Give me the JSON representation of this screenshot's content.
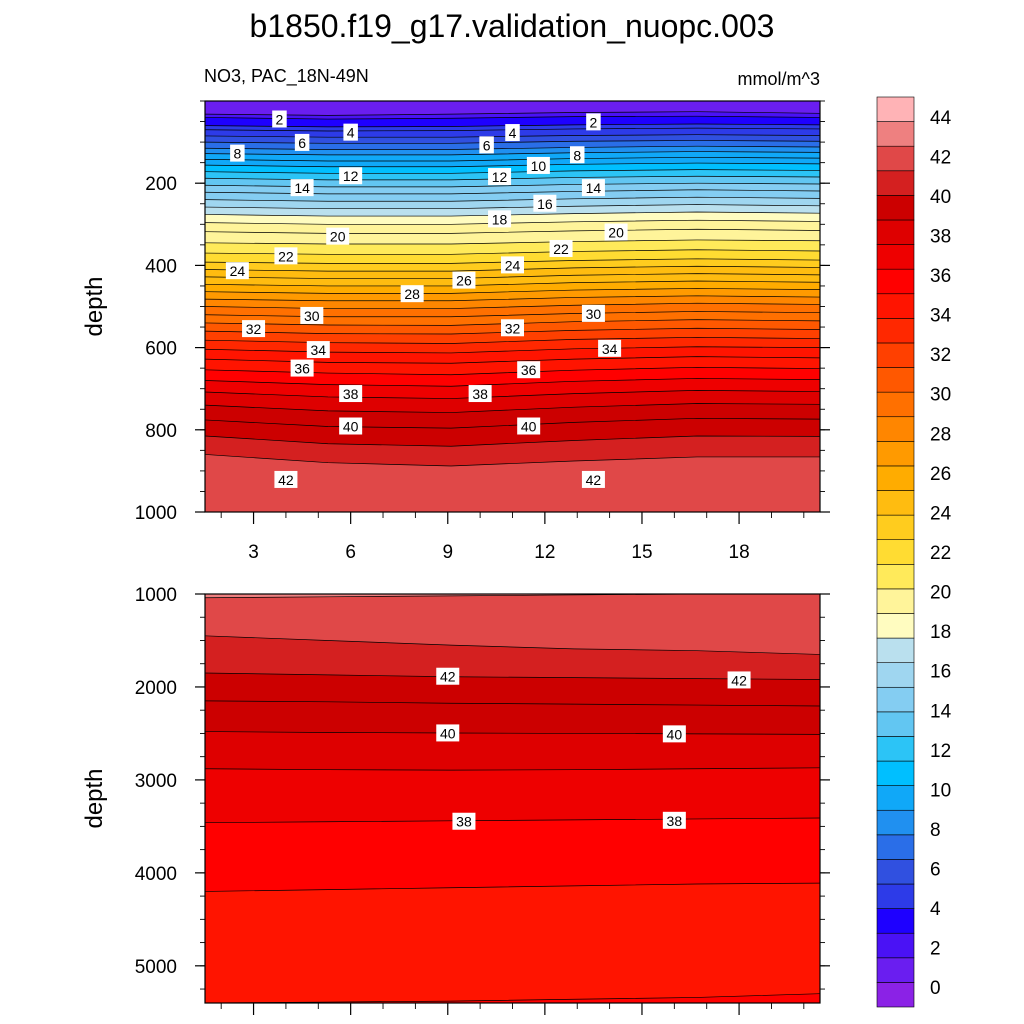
{
  "title": "b1850.f19_g17.validation_nuopc.003",
  "subtitle_left": "NO3, PAC_18N-49N",
  "subtitle_right": "mmol/m^3",
  "colors": {
    "bands": [
      "#8b22e6",
      "#6a1ef0",
      "#4a12f5",
      "#1e00ff",
      "#2d3be8",
      "#3050e0",
      "#2a6ee8",
      "#2090f0",
      "#10a8f8",
      "#00bfff",
      "#2cc4f6",
      "#62c6f2",
      "#84cdf2",
      "#9fd6f0",
      "#bae0ee",
      "#fffcc0",
      "#fff49a",
      "#ffea5a",
      "#ffdc32",
      "#ffcc1e",
      "#ffbc10",
      "#ffac00",
      "#ff9a00",
      "#ff8600",
      "#ff7000",
      "#ff5800",
      "#ff4000",
      "#ff2800",
      "#ff1400",
      "#ff0000",
      "#ee0000",
      "#de0000",
      "#cc0000",
      "#d42020",
      "#e04848",
      "#ee8080",
      "#ffb3b6"
    ]
  },
  "chart_data": [
    {
      "type": "contour",
      "panel": "upper",
      "x_ticks": [
        "3",
        "6",
        "9",
        "12",
        "15",
        "18"
      ],
      "x_values": [
        3,
        6,
        9,
        12,
        15,
        18
      ],
      "xlim": [
        1.5,
        20.5
      ],
      "ylabel": "depth",
      "y_ticks": [
        "200",
        "400",
        "600",
        "800",
        "1000"
      ],
      "y_values": [
        200,
        400,
        600,
        800,
        1000
      ],
      "ylim": [
        1000,
        0
      ],
      "contour_levels": [
        0,
        1,
        2,
        3,
        4,
        5,
        6,
        7,
        8,
        9,
        10,
        11,
        12,
        13,
        14,
        15,
        16,
        17,
        18,
        19,
        20,
        21,
        22,
        23,
        24,
        25,
        26,
        27,
        28,
        29,
        30,
        31,
        32,
        33,
        34,
        35,
        36,
        37,
        38,
        39,
        40,
        41,
        42,
        43,
        44,
        45
      ],
      "contour_lines": [
        {
          "level": 2,
          "depth": [
            32,
            35,
            32,
            28,
            26,
            30
          ]
        },
        {
          "level": 3,
          "depth": [
            40,
            44,
            42,
            38,
            37,
            40
          ]
        },
        {
          "level": 4,
          "depth": [
            60,
            63,
            62,
            58,
            56,
            58
          ]
        },
        {
          "level": 5,
          "depth": [
            70,
            73,
            72,
            68,
            66,
            68
          ]
        },
        {
          "level": 6,
          "depth": [
            85,
            88,
            88,
            84,
            82,
            84
          ]
        },
        {
          "level": 7,
          "depth": [
            100,
            103,
            103,
            98,
            96,
            98
          ]
        },
        {
          "level": 8,
          "depth": [
            115,
            118,
            118,
            113,
            110,
            112
          ]
        },
        {
          "level": 9,
          "depth": [
            128,
            131,
            131,
            126,
            123,
            125
          ]
        },
        {
          "level": 10,
          "depth": [
            142,
            146,
            146,
            140,
            137,
            139
          ]
        },
        {
          "level": 11,
          "depth": [
            156,
            160,
            160,
            154,
            151,
            153
          ]
        },
        {
          "level": 12,
          "depth": [
            172,
            176,
            176,
            170,
            167,
            169
          ]
        },
        {
          "level": 13,
          "depth": [
            188,
            192,
            192,
            186,
            183,
            185
          ]
        },
        {
          "level": 14,
          "depth": [
            205,
            209,
            209,
            203,
            200,
            202
          ]
        },
        {
          "level": 15,
          "depth": [
            222,
            226,
            226,
            220,
            216,
            219
          ]
        },
        {
          "level": 16,
          "depth": [
            240,
            244,
            244,
            238,
            234,
            237
          ]
        },
        {
          "level": 17,
          "depth": [
            258,
            262,
            262,
            256,
            252,
            255
          ]
        },
        {
          "level": 18,
          "depth": [
            276,
            280,
            280,
            274,
            270,
            273
          ]
        },
        {
          "level": 19,
          "depth": [
            296,
            300,
            300,
            294,
            290,
            293
          ]
        },
        {
          "level": 20,
          "depth": [
            318,
            322,
            322,
            316,
            312,
            315
          ]
        },
        {
          "level": 21,
          "depth": [
            345,
            348,
            348,
            342,
            338,
            340
          ]
        },
        {
          "level": 22,
          "depth": [
            370,
            373,
            373,
            366,
            362,
            365
          ]
        },
        {
          "level": 23,
          "depth": [
            392,
            395,
            395,
            388,
            384,
            387
          ]
        },
        {
          "level": 24,
          "depth": [
            410,
            414,
            414,
            406,
            402,
            405
          ]
        },
        {
          "level": 25,
          "depth": [
            428,
            432,
            432,
            424,
            420,
            423
          ]
        },
        {
          "level": 26,
          "depth": [
            446,
            450,
            450,
            442,
            438,
            441
          ]
        },
        {
          "level": 27,
          "depth": [
            464,
            468,
            468,
            460,
            456,
            459
          ]
        },
        {
          "level": 28,
          "depth": [
            482,
            486,
            486,
            478,
            474,
            477
          ]
        },
        {
          "level": 29,
          "depth": [
            500,
            505,
            505,
            497,
            492,
            495
          ]
        },
        {
          "level": 30,
          "depth": [
            520,
            525,
            525,
            517,
            512,
            515
          ]
        },
        {
          "level": 31,
          "depth": [
            540,
            545,
            546,
            537,
            532,
            535
          ]
        },
        {
          "level": 32,
          "depth": [
            560,
            566,
            567,
            558,
            553,
            556
          ]
        },
        {
          "level": 33,
          "depth": [
            582,
            588,
            590,
            580,
            575,
            578
          ]
        },
        {
          "level": 34,
          "depth": [
            604,
            611,
            613,
            603,
            598,
            600
          ]
        },
        {
          "level": 35,
          "depth": [
            628,
            636,
            638,
            628,
            622,
            625
          ]
        },
        {
          "level": 36,
          "depth": [
            654,
            662,
            666,
            655,
            648,
            651
          ]
        },
        {
          "level": 37,
          "depth": [
            680,
            690,
            694,
            682,
            675,
            678
          ]
        },
        {
          "level": 38,
          "depth": [
            708,
            720,
            724,
            712,
            704,
            707
          ]
        },
        {
          "level": 39,
          "depth": [
            740,
            754,
            758,
            745,
            736,
            738
          ]
        },
        {
          "level": 40,
          "depth": [
            776,
            792,
            796,
            782,
            772,
            774
          ]
        },
        {
          "level": 41,
          "depth": [
            815,
            834,
            840,
            826,
            815,
            816
          ]
        },
        {
          "level": 42,
          "depth": [
            860,
            880,
            888,
            876,
            866,
            866
          ]
        }
      ],
      "labels": [
        {
          "text": "2",
          "x": 3.8,
          "depth": 45
        },
        {
          "text": "2",
          "x": 13.5,
          "depth": 52
        },
        {
          "text": "4",
          "x": 6.0,
          "depth": 77
        },
        {
          "text": "4",
          "x": 11.0,
          "depth": 78
        },
        {
          "text": "6",
          "x": 4.5,
          "depth": 102
        },
        {
          "text": "6",
          "x": 10.2,
          "depth": 108
        },
        {
          "text": "8",
          "x": 2.5,
          "depth": 128
        },
        {
          "text": "8",
          "x": 13.0,
          "depth": 132
        },
        {
          "text": "10",
          "x": 11.8,
          "depth": 158
        },
        {
          "text": "12",
          "x": 6.0,
          "depth": 183
        },
        {
          "text": "12",
          "x": 10.6,
          "depth": 185
        },
        {
          "text": "14",
          "x": 4.5,
          "depth": 212
        },
        {
          "text": "14",
          "x": 13.5,
          "depth": 212
        },
        {
          "text": "16",
          "x": 12.0,
          "depth": 250
        },
        {
          "text": "18",
          "x": 10.6,
          "depth": 288
        },
        {
          "text": "20",
          "x": 5.6,
          "depth": 330
        },
        {
          "text": "20",
          "x": 14.2,
          "depth": 320
        },
        {
          "text": "22",
          "x": 4.0,
          "depth": 378
        },
        {
          "text": "22",
          "x": 12.5,
          "depth": 360
        },
        {
          "text": "24",
          "x": 2.5,
          "depth": 414
        },
        {
          "text": "24",
          "x": 11.0,
          "depth": 400
        },
        {
          "text": "26",
          "x": 9.5,
          "depth": 437
        },
        {
          "text": "28",
          "x": 7.9,
          "depth": 470
        },
        {
          "text": "30",
          "x": 4.8,
          "depth": 523
        },
        {
          "text": "30",
          "x": 13.5,
          "depth": 518
        },
        {
          "text": "32",
          "x": 3.0,
          "depth": 555
        },
        {
          "text": "32",
          "x": 11.0,
          "depth": 553
        },
        {
          "text": "34",
          "x": 5.0,
          "depth": 606
        },
        {
          "text": "34",
          "x": 14.0,
          "depth": 603
        },
        {
          "text": "36",
          "x": 4.5,
          "depth": 651
        },
        {
          "text": "36",
          "x": 11.5,
          "depth": 655
        },
        {
          "text": "38",
          "x": 6.0,
          "depth": 713
        },
        {
          "text": "38",
          "x": 10.0,
          "depth": 713
        },
        {
          "text": "40",
          "x": 6.0,
          "depth": 792
        },
        {
          "text": "40",
          "x": 11.5,
          "depth": 792
        },
        {
          "text": "42",
          "x": 4.0,
          "depth": 922
        },
        {
          "text": "42",
          "x": 13.5,
          "depth": 922
        }
      ]
    },
    {
      "type": "contour",
      "panel": "lower",
      "xlim": [
        1.5,
        20.5
      ],
      "ylabel": "depth",
      "y_ticks": [
        "1000",
        "2000",
        "3000",
        "4000",
        "5000"
      ],
      "y_values": [
        1000,
        2000,
        3000,
        4000,
        5000
      ],
      "ylim": [
        5400,
        1000
      ],
      "contour_lines": [
        {
          "level": 44,
          "depth": [
            1040,
            1030,
            1020,
            1010,
            1000,
            995
          ]
        },
        {
          "level": 43,
          "depth": [
            1450,
            1500,
            1550,
            1590,
            1610,
            1650
          ]
        },
        {
          "level": 42,
          "depth": [
            1850,
            1870,
            1890,
            1900,
            1910,
            1920
          ]
        },
        {
          "level": 41,
          "depth": [
            2150,
            2160,
            2175,
            2185,
            2195,
            2205
          ]
        },
        {
          "level": 40,
          "depth": [
            2480,
            2490,
            2495,
            2500,
            2505,
            2510
          ]
        },
        {
          "level": 39,
          "depth": [
            2880,
            2890,
            2895,
            2890,
            2880,
            2870
          ]
        },
        {
          "level": 38,
          "depth": [
            3460,
            3450,
            3440,
            3430,
            3420,
            3410
          ]
        },
        {
          "level": 37,
          "depth": [
            4200,
            4180,
            4160,
            4140,
            4120,
            4110
          ]
        },
        {
          "level": 36,
          "depth": [
            5400,
            5390,
            5380,
            5360,
            5340,
            5300
          ]
        }
      ],
      "labels": [
        {
          "text": "42",
          "x": 9.0,
          "depth": 1890
        },
        {
          "text": "42",
          "x": 18.0,
          "depth": 1930
        },
        {
          "text": "40",
          "x": 9.0,
          "depth": 2500
        },
        {
          "text": "40",
          "x": 16.0,
          "depth": 2510
        },
        {
          "text": "38",
          "x": 9.5,
          "depth": 3450
        },
        {
          "text": "38",
          "x": 16.0,
          "depth": 3440
        }
      ]
    },
    {
      "type": "colorbar",
      "ticks": [
        "0",
        "2",
        "4",
        "6",
        "8",
        "10",
        "12",
        "14",
        "16",
        "18",
        "20",
        "22",
        "24",
        "26",
        "28",
        "30",
        "32",
        "34",
        "36",
        "38",
        "40",
        "42",
        "44"
      ],
      "tick_values": [
        0,
        2,
        4,
        6,
        8,
        10,
        12,
        14,
        16,
        18,
        20,
        22,
        24,
        26,
        28,
        30,
        32,
        34,
        36,
        38,
        40,
        42,
        44
      ],
      "band_levels": [
        -1,
        0,
        1,
        2,
        3,
        4,
        5,
        6,
        7,
        8,
        9,
        10,
        11,
        12,
        13,
        14,
        15,
        16,
        17,
        18,
        19,
        20,
        21,
        22,
        23,
        24,
        25,
        26,
        27,
        28,
        29,
        30,
        31,
        32,
        33,
        34,
        35,
        36,
        37,
        38,
        39,
        40,
        41,
        42,
        43,
        44,
        45
      ]
    }
  ]
}
